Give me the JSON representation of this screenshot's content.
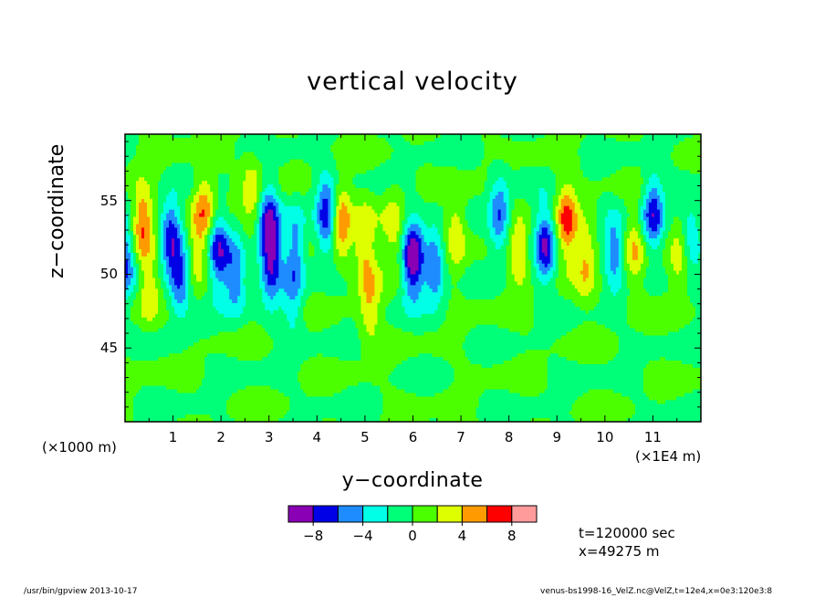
{
  "chart_data": {
    "type": "heatmap",
    "title": "vertical velocity",
    "xlabel": "y−coordinate",
    "ylabel": "z−coordinate",
    "x_unit_label": "(×1E4 m)",
    "y_unit_label": "(×1000 m)",
    "xlim": [
      0,
      12
    ],
    "ylim": [
      40,
      59.5
    ],
    "x_ticks": [
      "1",
      "2",
      "3",
      "4",
      "5",
      "6",
      "7",
      "8",
      "9",
      "10",
      "11"
    ],
    "y_ticks": [
      "45",
      "50",
      "55"
    ],
    "colorbar": {
      "colors": [
        "#8a00b4",
        "#0000e6",
        "#1e8cff",
        "#00ffe6",
        "#00ff78",
        "#4cff00",
        "#ddff00",
        "#ff9b00",
        "#ff0000",
        "#ff9b9b"
      ],
      "boundaries": [
        -10,
        -8,
        -6,
        -4,
        -2,
        0,
        2,
        4,
        6,
        8,
        10
      ],
      "tick_labels": [
        "−8",
        "−4",
        "0",
        "4",
        "8"
      ]
    },
    "features": [
      {
        "y": 0.0,
        "z": 51.0,
        "value": -5
      },
      {
        "y": 0.35,
        "z": 53.5,
        "value": 5
      },
      {
        "y": 0.5,
        "z": 49.0,
        "value": 3
      },
      {
        "y": 0.95,
        "z": 52.5,
        "value": -6
      },
      {
        "y": 1.15,
        "z": 49.5,
        "value": -5
      },
      {
        "y": 1.5,
        "z": 51.5,
        "value": 3
      },
      {
        "y": 1.65,
        "z": 54.5,
        "value": 4
      },
      {
        "y": 1.95,
        "z": 51.5,
        "value": -6
      },
      {
        "y": 2.3,
        "z": 50.0,
        "value": -5
      },
      {
        "y": 2.65,
        "z": 55.5,
        "value": 3
      },
      {
        "y": 3.0,
        "z": 53.5,
        "value": -6
      },
      {
        "y": 3.05,
        "z": 50.5,
        "value": -5
      },
      {
        "y": 3.55,
        "z": 52.0,
        "value": -4
      },
      {
        "y": 3.5,
        "z": 48.5,
        "value": -3
      },
      {
        "y": 4.2,
        "z": 54.0,
        "value": -6
      },
      {
        "y": 4.5,
        "z": 53.5,
        "value": 5
      },
      {
        "y": 5.0,
        "z": 52.0,
        "value": 3
      },
      {
        "y": 5.1,
        "z": 48.0,
        "value": 3
      },
      {
        "y": 6.0,
        "z": 51.0,
        "value": -8
      },
      {
        "y": 6.45,
        "z": 50.5,
        "value": -5
      },
      {
        "y": 5.6,
        "z": 53.0,
        "value": 3
      },
      {
        "y": 6.9,
        "z": 53.0,
        "value": 3
      },
      {
        "y": 7.8,
        "z": 54.0,
        "value": -5
      },
      {
        "y": 8.2,
        "z": 51.5,
        "value": 3
      },
      {
        "y": 8.75,
        "z": 52.0,
        "value": -6
      },
      {
        "y": 9.2,
        "z": 53.5,
        "value": 5
      },
      {
        "y": 9.6,
        "z": 51.0,
        "value": 3
      },
      {
        "y": 10.2,
        "z": 51.5,
        "value": -4
      },
      {
        "y": 10.6,
        "z": 51.5,
        "value": 3
      },
      {
        "y": 11.0,
        "z": 54.0,
        "value": -6
      },
      {
        "y": 11.55,
        "z": 51.0,
        "value": 3
      },
      {
        "y": 11.8,
        "z": 52.5,
        "value": -3
      }
    ]
  },
  "info": {
    "time": "t=120000 sec",
    "position": "x=49275 m"
  },
  "footer": {
    "left": "/usr/bin/gpview   2013-10-17",
    "right": "venus-bs1998-16_VelZ.nc@VelZ,t=12e4,x=0e3:120e3:8"
  }
}
